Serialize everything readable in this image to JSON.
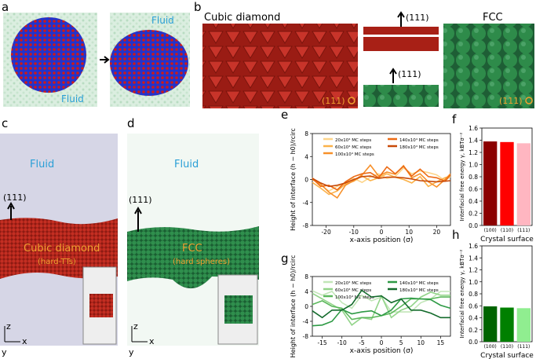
{
  "panels": {
    "a": {
      "label": "a",
      "fluid_left": "Fluid",
      "fluid_right": "Fluid"
    },
    "b": {
      "label": "b",
      "left_title": "Cubic diamond",
      "right_title": "FCC",
      "dir_top": "(111)",
      "dir_bottom": "(111)",
      "facet_left": "(111)",
      "facet_right": "(111)"
    },
    "c": {
      "label": "c",
      "fluid": "Fluid",
      "dir": "(111)",
      "crystal": "Cubic diamond",
      "particle": "(hard-TTs)",
      "ax_z": "z",
      "ax_x": "x",
      "ax_y": "y"
    },
    "d": {
      "label": "d",
      "fluid": "Fluid",
      "dir": "(111)",
      "crystal": "FCC",
      "particle": "(hard spheres)",
      "ax_z": "z",
      "ax_x": "x",
      "ax_y": "y"
    }
  },
  "colors": {
    "red": "#b3201a",
    "green": "#2e8b4a",
    "fluid_blue": "#2a9fd6",
    "label_orange": "#f0a030"
  },
  "chart_data": [
    {
      "id": "e",
      "type": "line",
      "label": "e",
      "xlabel": "x-axis position (σ)",
      "ylabel": "Height of interface (h − h0)/rcirc",
      "xlim": [
        -25,
        25
      ],
      "ylim": [
        -8,
        8
      ],
      "xticks": [
        "-20",
        "-10",
        "0",
        "10",
        "20"
      ],
      "xtick_values": [
        -20,
        -10,
        0,
        10,
        20
      ],
      "yticks": [
        "-8",
        "-4",
        "0",
        "4",
        "8"
      ],
      "ytick_values": [
        -8,
        -4,
        0,
        4,
        8
      ],
      "x": [
        -25,
        -22,
        -19,
        -16,
        -13,
        -10,
        -7,
        -4,
        -1,
        2,
        5,
        8,
        11,
        14,
        17,
        20,
        23,
        25
      ],
      "series": [
        {
          "name": "20x10⁴ MC steps",
          "color": "#fdd58a",
          "values": [
            0.3,
            -1.0,
            -2.0,
            -1.2,
            -0.6,
            0.2,
            -0.5,
            0.4,
            1.0,
            0.2,
            0.5,
            2.0,
            1.0,
            1.5,
            1.2,
            0.8,
            -0.2,
            0.5
          ]
        },
        {
          "name": "60x10⁴ MC steps",
          "color": "#fbb24a",
          "values": [
            -0.5,
            -1.5,
            -2.6,
            -2.0,
            -0.8,
            -0.3,
            0.6,
            -0.2,
            0.3,
            1.0,
            0.4,
            0.0,
            -0.6,
            0.5,
            -1.2,
            -0.4,
            0.3,
            0.6
          ]
        },
        {
          "name": "100x10⁴ MC steps",
          "color": "#f7902a",
          "values": [
            0.0,
            -0.8,
            -2.2,
            -3.2,
            -1.0,
            -0.2,
            0.8,
            2.5,
            0.6,
            1.3,
            0.9,
            2.4,
            0.3,
            1.0,
            -0.4,
            -1.3,
            0.0,
            1.0
          ]
        },
        {
          "name": "140x10⁴ MC steps",
          "color": "#ec6a14",
          "values": [
            0.2,
            -1.2,
            -1.0,
            -1.8,
            -0.4,
            0.5,
            1.0,
            1.2,
            0.3,
            2.2,
            1.0,
            2.3,
            0.6,
            1.8,
            0.5,
            0.3,
            -0.3,
            0.8
          ]
        },
        {
          "name": "180x10⁴ MC steps",
          "color": "#c84a08",
          "values": [
            0.2,
            -0.6,
            -1.2,
            -1.0,
            -0.6,
            0.0,
            0.5,
            0.6,
            0.2,
            0.4,
            0.4,
            0.3,
            0.1,
            -0.2,
            -0.3,
            -0.4,
            -0.3,
            -0.2
          ]
        }
      ]
    },
    {
      "id": "f",
      "type": "bar",
      "label": "f",
      "categories": [
        "(100)",
        "(110)",
        "(111)"
      ],
      "values": [
        1.38,
        1.37,
        1.35
      ],
      "colors": [
        "#8b0000",
        "#ff0000",
        "#ffb6c1"
      ],
      "xlabel": "Crystal surface",
      "ylabel": "Interfacial free energy γ, kBTσ⁻²",
      "ylim": [
        0,
        1.6
      ],
      "yticks": [
        "0.0",
        "0.2",
        "0.4",
        "0.6",
        "0.8",
        "1.0",
        "1.2",
        "1.4",
        "1.6"
      ]
    },
    {
      "id": "g",
      "type": "line",
      "label": "g",
      "xlabel": "x-axis position (σ)",
      "ylabel": "Height of interface (h − h0)/rcirc",
      "xlim": [
        -17.5,
        17.5
      ],
      "ylim": [
        -8,
        8
      ],
      "xticks": [
        "-15",
        "-10",
        "-5",
        "0",
        "5",
        "10",
        "15"
      ],
      "xtick_values": [
        -15,
        -10,
        -5,
        0,
        5,
        10,
        15
      ],
      "yticks": [
        "-8",
        "-4",
        "0",
        "4",
        "8"
      ],
      "ytick_values": [
        -8,
        -4,
        0,
        4,
        8
      ],
      "x": [
        -17.5,
        -15,
        -12.5,
        -10,
        -7.5,
        -5,
        -2.5,
        0,
        2.5,
        5,
        7.5,
        10,
        12.5,
        15,
        17.5
      ],
      "series": [
        {
          "name": "20x10⁴ MC steps",
          "color": "#c2e6b8",
          "values": [
            4.2,
            3.0,
            4.0,
            1.0,
            -0.5,
            3.0,
            1.5,
            2.5,
            -1.5,
            -1.5,
            -1.5,
            1.0,
            2.0,
            4.0,
            4.0
          ]
        },
        {
          "name": "60x10⁴ MC steps",
          "color": "#93d48a",
          "values": [
            3.5,
            2.0,
            0.5,
            -1.0,
            -5.0,
            -3.0,
            -3.5,
            2.8,
            -3.0,
            -1.0,
            0.0,
            2.5,
            3.8,
            3.0,
            3.0
          ]
        },
        {
          "name": "100x10⁴ MC steps",
          "color": "#5cb85c",
          "values": [
            0.5,
            1.5,
            0.0,
            -0.5,
            -3.5,
            -3.0,
            -3.0,
            -2.5,
            -1.8,
            0.0,
            2.0,
            2.0,
            2.0,
            2.5,
            2.5
          ]
        },
        {
          "name": "140x10⁴ MC steps",
          "color": "#2e9a45",
          "values": [
            -5.2,
            -5.0,
            -4.0,
            -0.8,
            -2.0,
            -1.5,
            -1.2,
            -2.5,
            -1.0,
            2.0,
            2.2,
            2.0,
            1.8,
            0.3,
            -0.5
          ]
        },
        {
          "name": "180x10⁴ MC steps",
          "color": "#146b2c",
          "values": [
            -1.2,
            -3.0,
            -1.0,
            -1.0,
            0.5,
            4.3,
            2.5,
            2.8,
            1.0,
            2.0,
            -1.0,
            -1.0,
            -1.8,
            -3.0,
            -3.0
          ]
        }
      ]
    },
    {
      "id": "h",
      "type": "bar",
      "label": "h",
      "categories": [
        "(100)",
        "(110)",
        "(111)"
      ],
      "values": [
        0.59,
        0.57,
        0.56
      ],
      "colors": [
        "#006400",
        "#008000",
        "#90ee90"
      ],
      "xlabel": "Crystal surface",
      "ylabel": "Interfacial free energy γ, kBTσ⁻²",
      "ylim": [
        0,
        1.6
      ],
      "yticks": [
        "0.0",
        "0.2",
        "0.4",
        "0.6",
        "0.8",
        "1.0",
        "1.2",
        "1.4",
        "1.6"
      ]
    }
  ]
}
